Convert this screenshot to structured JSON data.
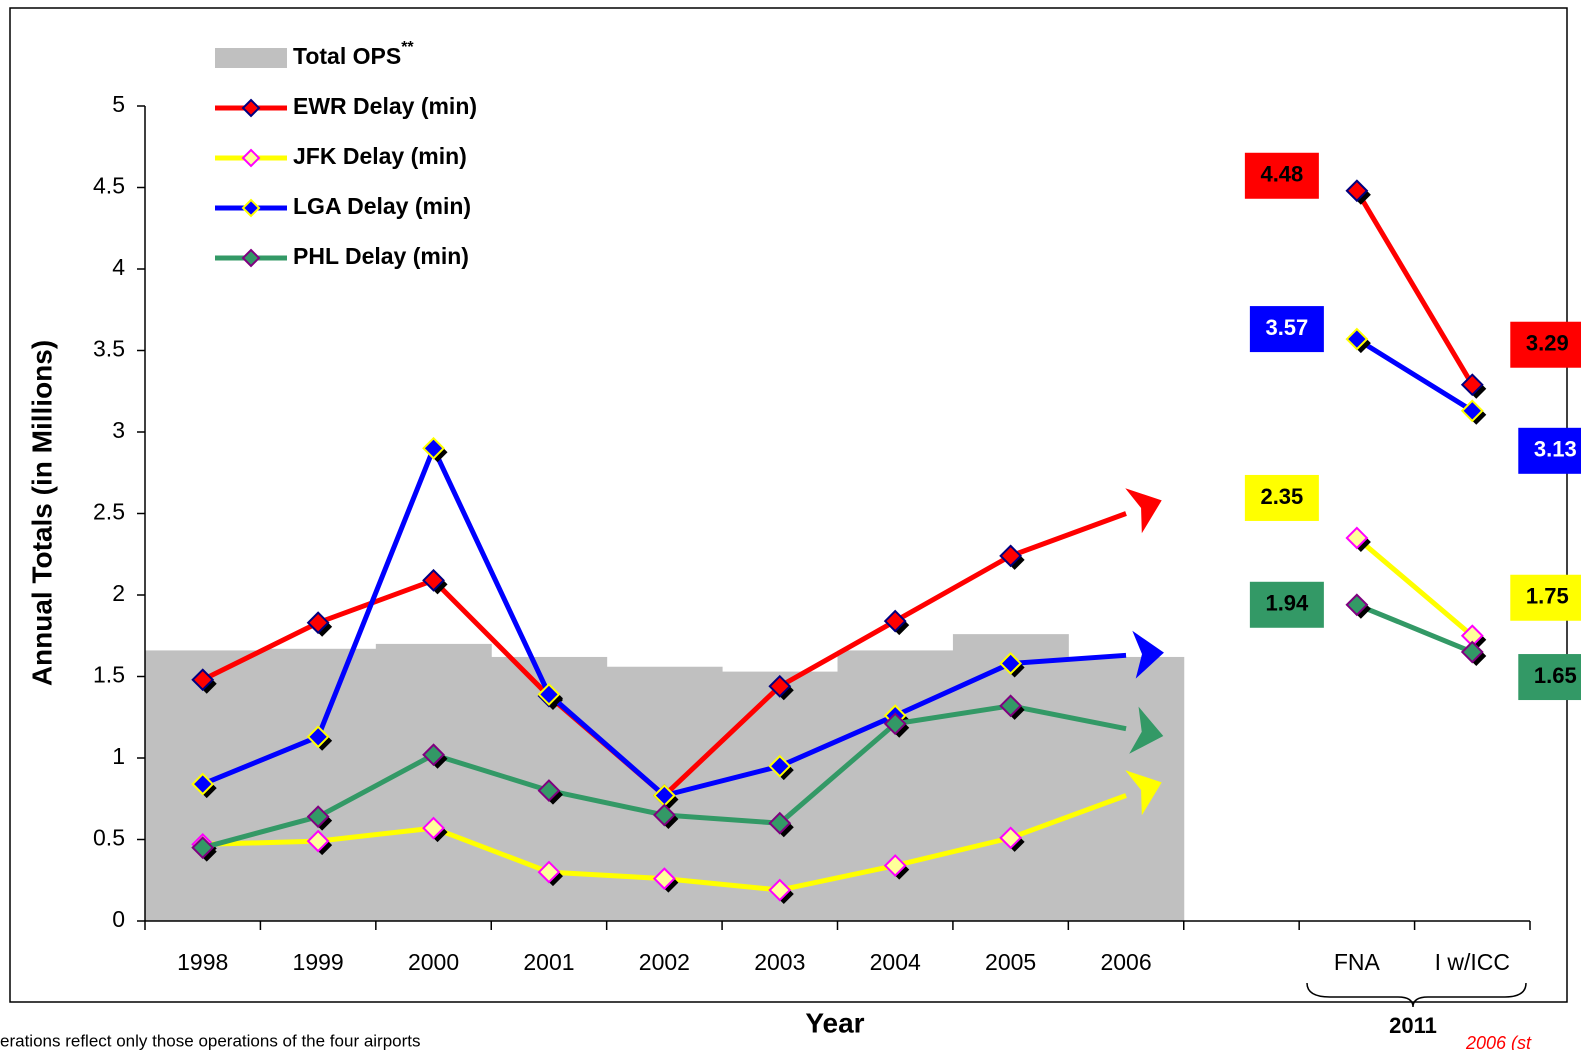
{
  "chart_data": {
    "type": "bar_line",
    "y_label": "Annual Totals (in Millions)",
    "x_label": "Year",
    "group_label": "2011",
    "footnote": "erations reflect only those operations of the four airports",
    "source_note": "2006 (st",
    "legend_superscript": "**",
    "categories": [
      "1998",
      "1999",
      "2000",
      "2001",
      "2002",
      "2003",
      "2004",
      "2005",
      "2006",
      null,
      "FNA",
      "I w/ICC"
    ],
    "ylim": [
      0,
      5
    ],
    "yticks": [
      0,
      0.5,
      1,
      1.5,
      2,
      2.5,
      3,
      3.5,
      4,
      4.5,
      5
    ],
    "trend_arrows": true,
    "label_categories": [
      10,
      11
    ],
    "bars": {
      "name": "Total OPS",
      "color": "#c0c0c0",
      "values": [
        1.66,
        1.67,
        1.7,
        1.62,
        1.56,
        1.53,
        1.66,
        1.76,
        1.62,
        null,
        null,
        null
      ]
    },
    "series": [
      {
        "name": "EWR Delay (min)",
        "color": "#ff0000",
        "marker_fill": "#ff0000",
        "marker_edge": "#000080",
        "values": [
          1.48,
          1.83,
          2.09,
          1.38,
          0.77,
          1.44,
          1.84,
          2.24,
          2.5,
          null,
          4.48,
          3.29
        ]
      },
      {
        "name": "JFK Delay (min)",
        "color": "#ffff00",
        "marker_fill": "#ffff99",
        "marker_edge": "#ff00ff",
        "values": [
          0.47,
          0.49,
          0.57,
          0.3,
          0.26,
          0.19,
          0.34,
          0.51,
          0.77,
          null,
          2.35,
          1.75
        ]
      },
      {
        "name": "LGA Delay (min)",
        "color": "#0000ff",
        "marker_fill": "#0000ff",
        "marker_edge": "#ffff00",
        "values": [
          0.84,
          1.13,
          2.9,
          1.39,
          0.77,
          0.95,
          1.26,
          1.58,
          1.63,
          null,
          3.57,
          3.13
        ]
      },
      {
        "name": "PHL Delay (min)",
        "color": "#339966",
        "marker_fill": "#339966",
        "marker_edge": "#800080",
        "values": [
          0.45,
          0.64,
          1.02,
          0.8,
          0.65,
          0.6,
          1.21,
          1.32,
          1.18,
          null,
          1.94,
          1.65
        ]
      }
    ]
  }
}
